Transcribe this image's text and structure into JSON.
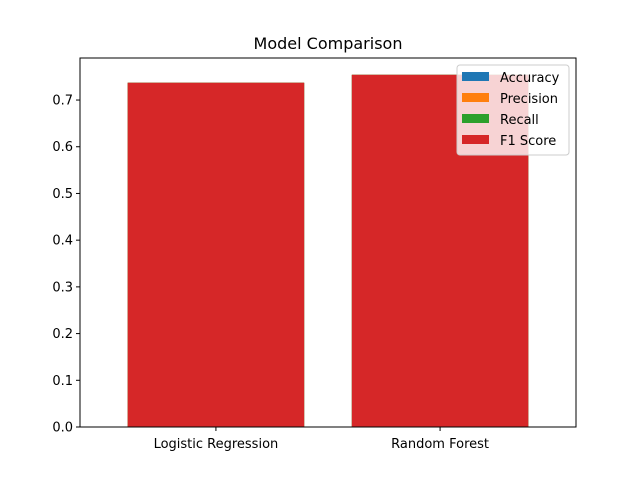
{
  "chart_data": {
    "type": "bar",
    "title": "Model Comparison",
    "xlabel": "",
    "ylabel": "",
    "categories": [
      "Logistic Regression",
      "Random Forest"
    ],
    "series": [
      {
        "name": "Accuracy",
        "values": [
          0.737,
          0.754
        ],
        "color": "#1f77b4"
      },
      {
        "name": "Precision",
        "values": [
          0.737,
          0.754
        ],
        "color": "#ff7f0e"
      },
      {
        "name": "Recall",
        "values": [
          0.737,
          0.754
        ],
        "color": "#2ca02c"
      },
      {
        "name": "F1 Score",
        "values": [
          0.737,
          0.754
        ],
        "color": "#d62728"
      }
    ],
    "ylim": [
      0,
      0.79
    ],
    "yticks": [
      "0.0",
      "0.1",
      "0.2",
      "0.3",
      "0.4",
      "0.5",
      "0.6",
      "0.7"
    ],
    "grid": false,
    "legend_position": "top-right"
  }
}
